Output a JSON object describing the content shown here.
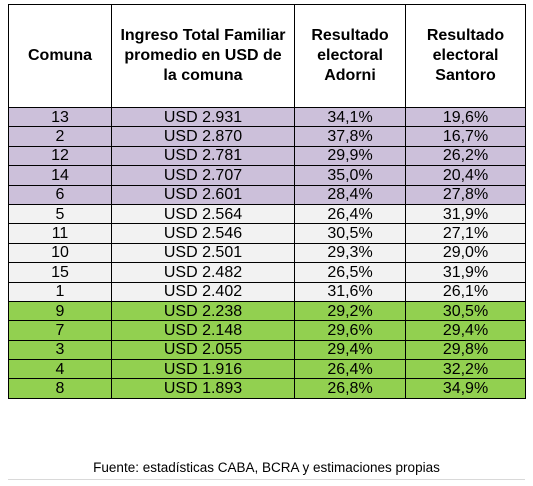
{
  "table": {
    "headers": [
      "Comuna",
      "Ingreso Total Familiar promedio en USD de la comuna",
      "Resultado electoral Adorni",
      "Resultado electoral Santoro"
    ],
    "rows": [
      {
        "group": "high",
        "cells": [
          "13",
          "USD 2.931",
          "34,1%",
          "19,6%"
        ]
      },
      {
        "group": "high",
        "cells": [
          "2",
          "USD 2.870",
          "37,8%",
          "16,7%"
        ]
      },
      {
        "group": "high",
        "cells": [
          "12",
          "USD 2.781",
          "29,9%",
          "26,2%"
        ]
      },
      {
        "group": "high",
        "cells": [
          "14",
          "USD 2.707",
          "35,0%",
          "20,4%"
        ]
      },
      {
        "group": "high",
        "cells": [
          "6",
          "USD 2.601",
          "28,4%",
          "27,8%"
        ]
      },
      {
        "group": "mid",
        "cells": [
          "5",
          "USD 2.564",
          "26,4%",
          "31,9%"
        ]
      },
      {
        "group": "mid",
        "cells": [
          "11",
          "USD 2.546",
          "30,5%",
          "27,1%"
        ]
      },
      {
        "group": "mid",
        "cells": [
          "10",
          "USD 2.501",
          "29,3%",
          "29,0%"
        ]
      },
      {
        "group": "mid",
        "cells": [
          "15",
          "USD 2.482",
          "26,5%",
          "31,9%"
        ]
      },
      {
        "group": "mid",
        "cells": [
          "1",
          "USD 2.402",
          "31,6%",
          "26,1%"
        ]
      },
      {
        "group": "low",
        "cells": [
          "9",
          "USD 2.238",
          "29,2%",
          "30,5%"
        ]
      },
      {
        "group": "low",
        "cells": [
          "7",
          "USD 2.148",
          "29,6%",
          "29,4%"
        ]
      },
      {
        "group": "low",
        "cells": [
          "3",
          "USD 2.055",
          "29,4%",
          "29,8%"
        ]
      },
      {
        "group": "low",
        "cells": [
          "4",
          "USD 1.916",
          "26,4%",
          "32,2%"
        ]
      },
      {
        "group": "low",
        "cells": [
          "8",
          "USD 1.893",
          "26,8%",
          "34,9%"
        ]
      }
    ]
  },
  "footer": {
    "source": "Fuente: estadísticas CABA, BCRA y estimaciones propias"
  },
  "colors": {
    "high_income_fill": "#ccc0da",
    "mid_income_fill": "#f2f2f2",
    "low_income_fill": "#92d050",
    "border": "#000000"
  }
}
